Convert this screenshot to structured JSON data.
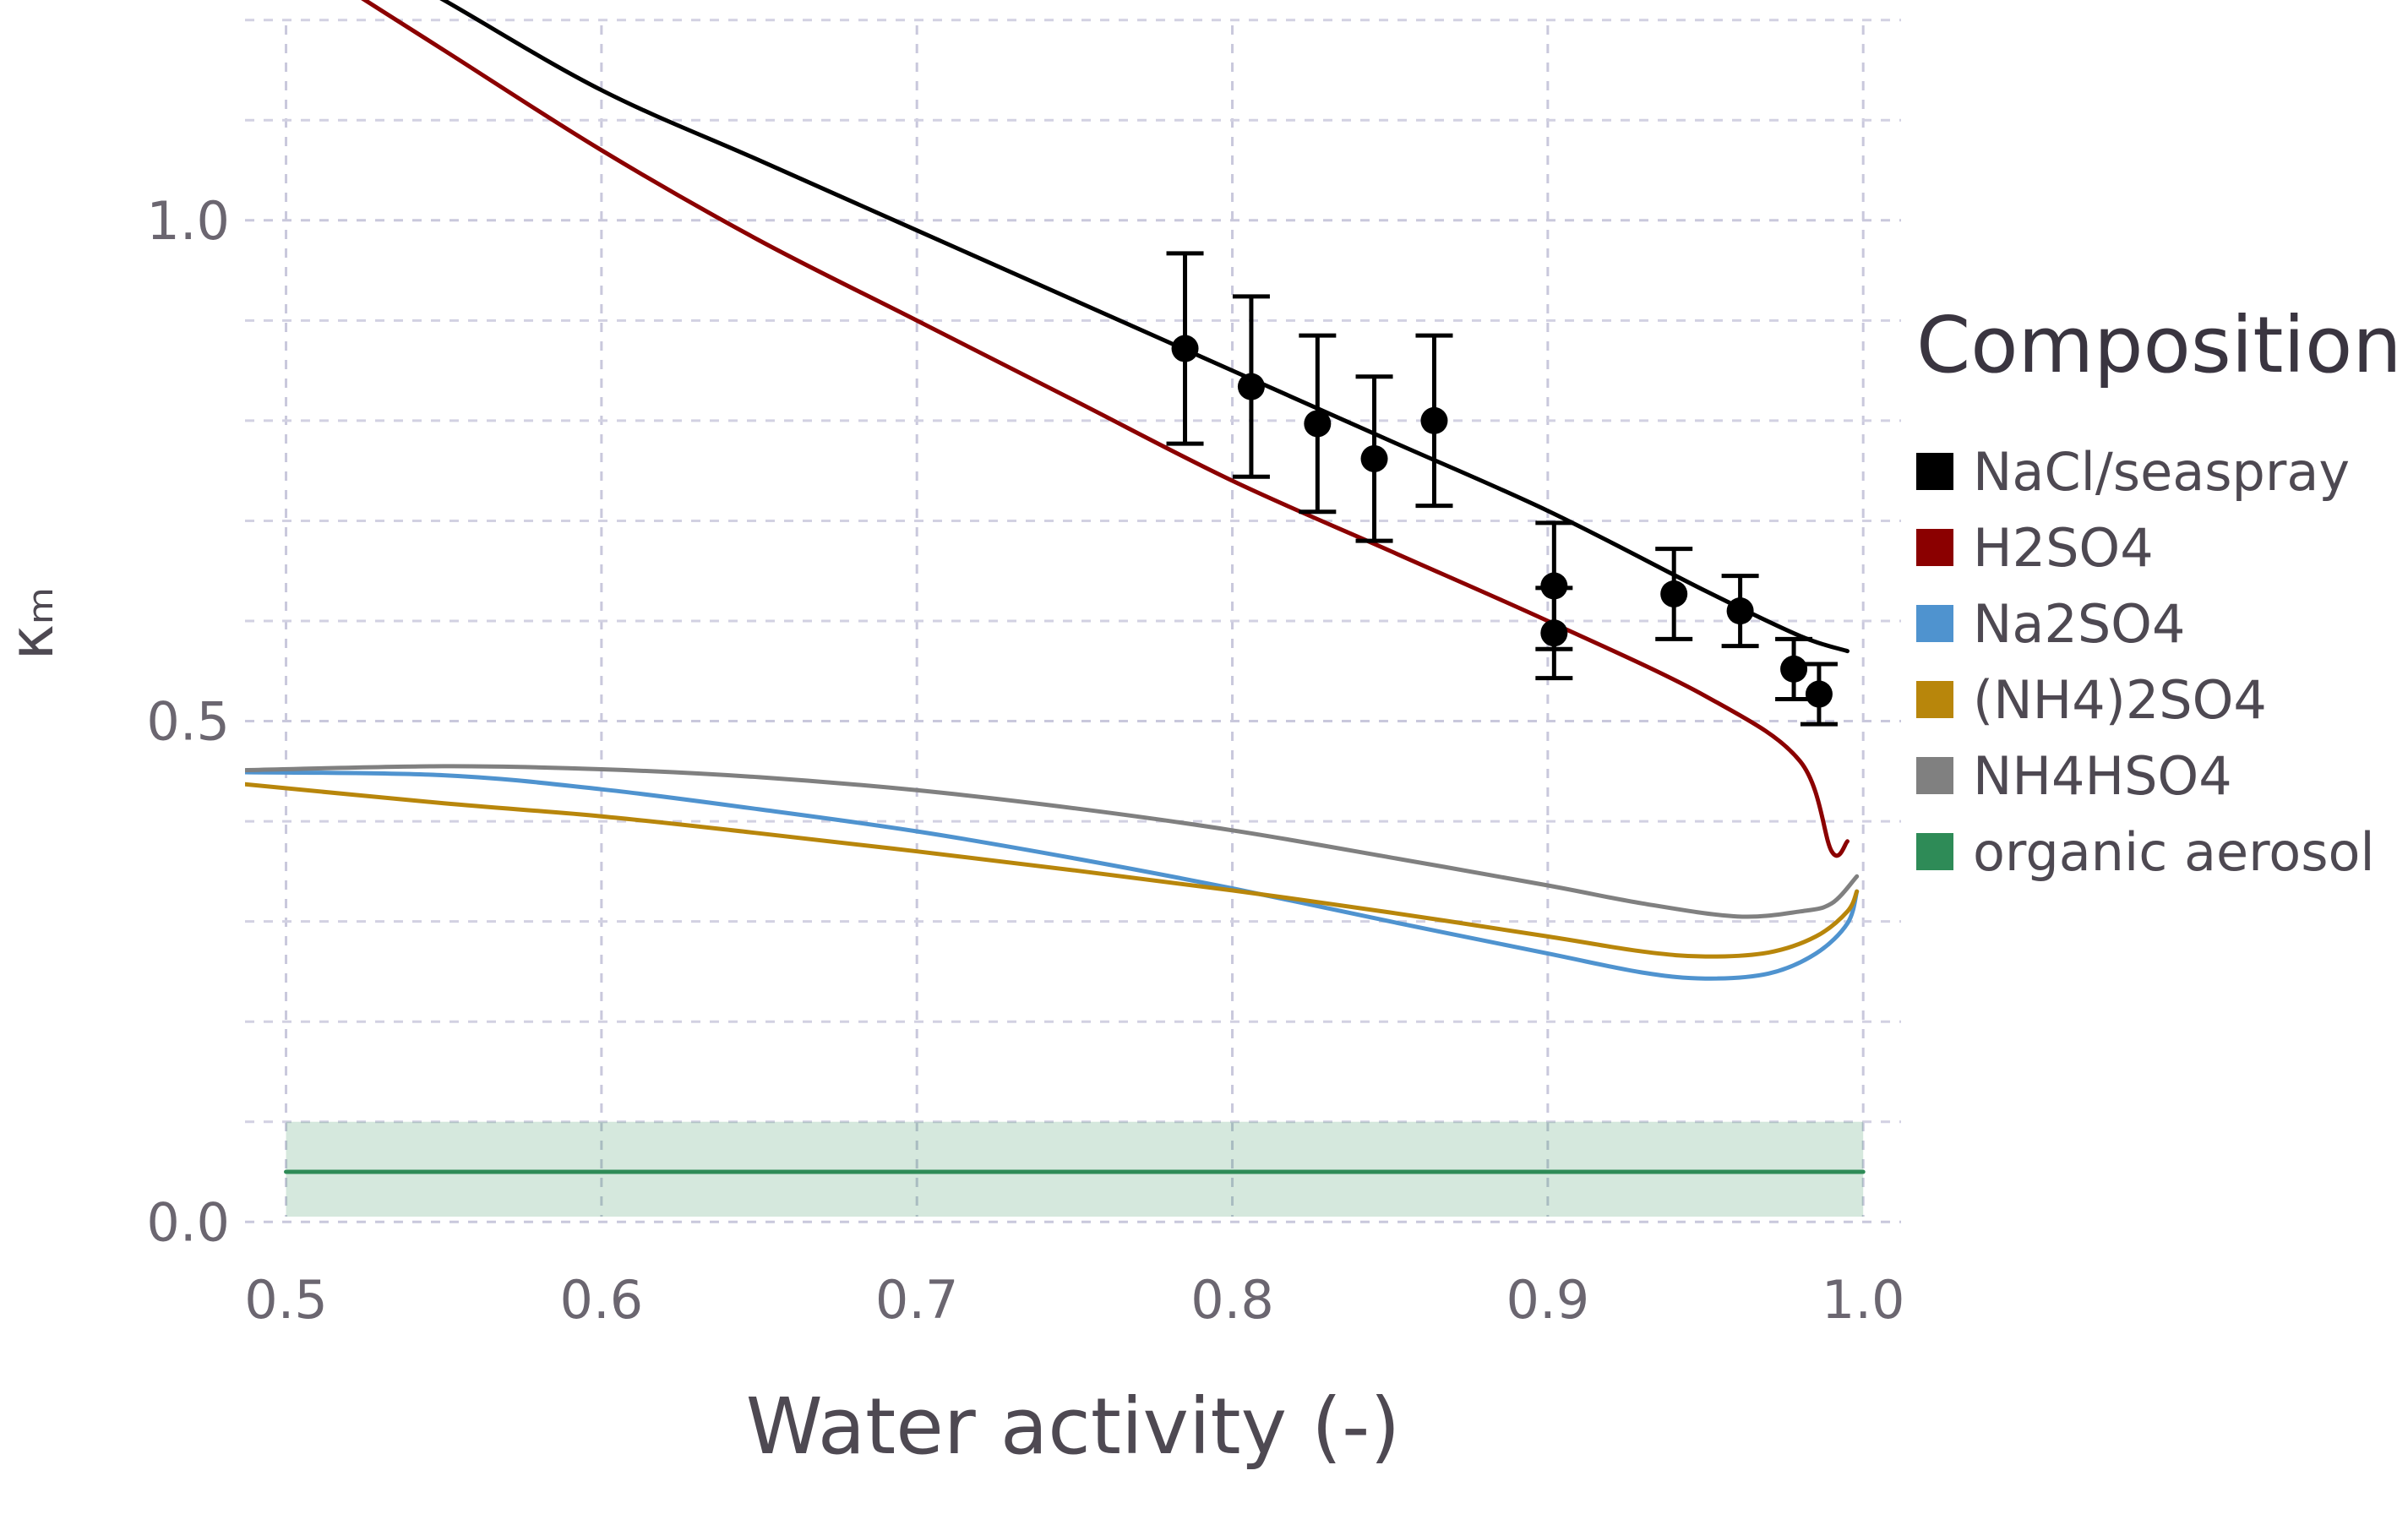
{
  "chart_data": {
    "type": "line",
    "xlabel": "Water activity (-)",
    "ylabel": "κₘ",
    "xlim": [
      0.487,
      1.012
    ],
    "ylim": [
      -0.02,
      1.22
    ],
    "x_ticks": [
      0.5,
      0.6,
      0.7,
      0.8,
      0.9,
      1.0
    ],
    "x_tick_labels": [
      "0.5",
      "0.6",
      "0.7",
      "0.8",
      "0.9",
      "1.0"
    ],
    "y_ticks": [
      0.0,
      0.5,
      1.0
    ],
    "y_tick_labels": [
      "0.0",
      "0.5",
      "1.0"
    ],
    "grid": true,
    "legend": {
      "title": "Composition",
      "position": "right",
      "entries": [
        {
          "label": "NaCl/seaspray",
          "color": "#000000"
        },
        {
          "label": "H2SO4",
          "color": "#8b0000"
        },
        {
          "label": "Na2SO4",
          "color": "#4f93cf"
        },
        {
          "label": "(NH4)2SO4",
          "color": "#b8860b"
        },
        {
          "label": "NH4HSO4",
          "color": "#808080"
        },
        {
          "label": "organic aerosol",
          "color": "#2e8b57"
        }
      ]
    },
    "series": [
      {
        "name": "NaCl/seaspray",
        "color": "#000000",
        "x": [
          0.5,
          0.55,
          0.6,
          0.65,
          0.7,
          0.75,
          0.8,
          0.85,
          0.9,
          0.95,
          0.98,
          0.995
        ],
        "y": [
          1.31,
          1.22,
          1.13,
          1.06,
          0.99,
          0.92,
          0.85,
          0.78,
          0.71,
          0.63,
          0.585,
          0.57
        ]
      },
      {
        "name": "H2SO4",
        "color": "#8b0000",
        "x": [
          0.5,
          0.55,
          0.6,
          0.65,
          0.7,
          0.75,
          0.8,
          0.85,
          0.9,
          0.95,
          0.98,
          0.99,
          0.995
        ],
        "y": [
          1.27,
          1.17,
          1.07,
          0.98,
          0.9,
          0.82,
          0.74,
          0.67,
          0.6,
          0.525,
          0.46,
          0.37,
          0.38
        ]
      },
      {
        "name": "Na2SO4",
        "color": "#4f93cf",
        "x": [
          0.487,
          0.55,
          0.6,
          0.65,
          0.7,
          0.75,
          0.8,
          0.85,
          0.9,
          0.93,
          0.95,
          0.97,
          0.985,
          0.995,
          0.998
        ],
        "y": [
          0.449,
          0.446,
          0.432,
          0.412,
          0.39,
          0.363,
          0.333,
          0.3,
          0.268,
          0.249,
          0.243,
          0.248,
          0.268,
          0.298,
          0.33
        ]
      },
      {
        "name": "(NH4)2SO4",
        "color": "#b8860b",
        "x": [
          0.487,
          0.55,
          0.6,
          0.65,
          0.7,
          0.75,
          0.8,
          0.85,
          0.9,
          0.93,
          0.95,
          0.97,
          0.985,
          0.995,
          0.998
        ],
        "y": [
          0.437,
          0.418,
          0.405,
          0.388,
          0.37,
          0.351,
          0.331,
          0.309,
          0.285,
          0.27,
          0.265,
          0.269,
          0.285,
          0.31,
          0.33
        ]
      },
      {
        "name": "NH4HSO4",
        "color": "#808080",
        "x": [
          0.487,
          0.55,
          0.6,
          0.65,
          0.7,
          0.75,
          0.8,
          0.85,
          0.9,
          0.93,
          0.96,
          0.98,
          0.99,
          0.998
        ],
        "y": [
          0.451,
          0.455,
          0.452,
          0.444,
          0.431,
          0.413,
          0.391,
          0.364,
          0.336,
          0.318,
          0.305,
          0.31,
          0.318,
          0.345
        ]
      },
      {
        "name": "organic aerosol",
        "color": "#2e8b57",
        "x": [
          0.5,
          1.0
        ],
        "y": [
          0.05,
          0.05
        ],
        "band": {
          "lower": 0.0,
          "upper": 0.1,
          "color": "#2e8b57",
          "opacity": 0.2
        }
      }
    ],
    "measurements": {
      "name": "NaCl/seaspray",
      "color": "#000000",
      "x": [
        0.785,
        0.806,
        0.827,
        0.845,
        0.864,
        0.902,
        0.902,
        0.94,
        0.961,
        0.978,
        0.986
      ],
      "y": [
        0.872,
        0.834,
        0.797,
        0.762,
        0.8,
        0.635,
        0.588,
        0.627,
        0.61,
        0.552,
        0.527
      ],
      "err": [
        0.095,
        0.09,
        0.088,
        0.082,
        0.085,
        0.063,
        0.045,
        0.045,
        0.035,
        0.03,
        0.03
      ]
    }
  }
}
